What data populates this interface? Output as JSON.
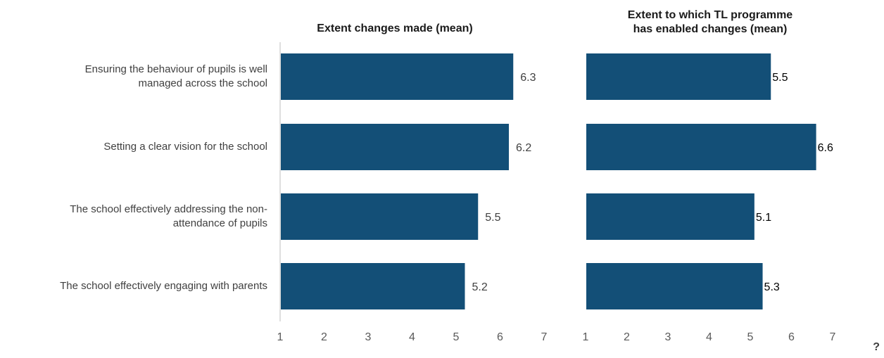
{
  "chart_data": [
    {
      "type": "bar",
      "orientation": "horizontal",
      "title": "Extent changes made (mean)",
      "categories": [
        "Ensuring the behaviour of pupils is well managed across the school",
        "Setting a clear vision for the school",
        "The school effectively addressing the non-attendance of pupils",
        "The school effectively engaging with parents"
      ],
      "values": [
        6.3,
        6.2,
        5.5,
        5.2
      ],
      "value_labels": [
        "6.3",
        "6.2",
        "5.5",
        "5.2"
      ],
      "xlim": [
        1,
        7
      ],
      "ticks": [
        "1",
        "2",
        "3",
        "4",
        "5",
        "6",
        "7"
      ],
      "grid": false,
      "color": "#134F77"
    },
    {
      "type": "bar",
      "orientation": "horizontal",
      "title": "Extent to which  TL programme has enabled changes (mean)",
      "title_lines": [
        "Extent to which  TL programme",
        "has enabled changes (mean)"
      ],
      "categories": [
        "Ensuring the behaviour of pupils is well managed across the school",
        "Setting a clear vision for the school",
        "The school effectively addressing the non-attendance of pupils",
        "The school effectively engaging with parents"
      ],
      "values": [
        5.5,
        6.6,
        5.1,
        5.3
      ],
      "value_labels": [
        "5.5",
        "6.6",
        "5.1",
        "5.3"
      ],
      "xlim": [
        1,
        7
      ],
      "ticks": [
        "1",
        "2",
        "3",
        "4",
        "5",
        "6",
        "7"
      ],
      "grid": false,
      "color": "#134F77"
    }
  ],
  "category_label_lines": [
    [
      "Ensuring the behaviour of pupils is well",
      "managed across the school"
    ],
    [
      "Setting a clear vision for the school"
    ],
    [
      "The school effectively addressing the non-",
      "attendance of pupils"
    ],
    [
      "The school effectively engaging with parents"
    ]
  ],
  "corner_mark": "?"
}
